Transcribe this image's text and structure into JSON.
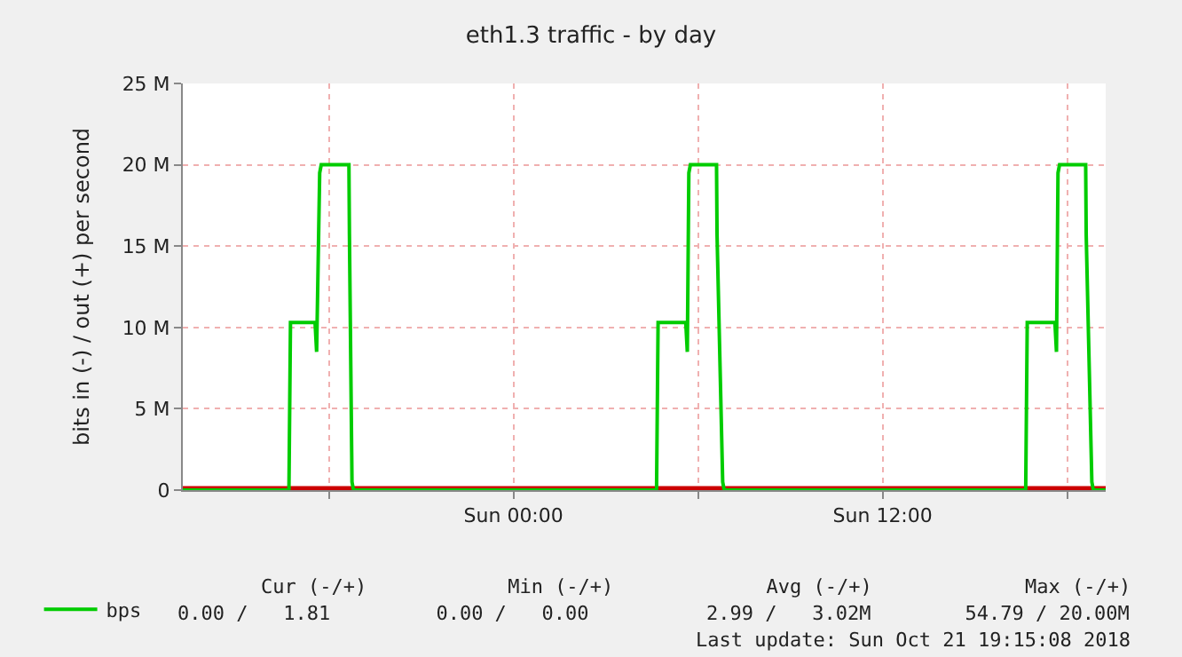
{
  "chart_data": {
    "type": "line",
    "title": "eth1.3 traffic - by day",
    "ylabel": "bits in (-) / out (+) per second",
    "xlim": [
      "2018-10-20T13:15",
      "2018-10-21T19:15"
    ],
    "xticks": [
      {
        "value": "2018-10-20T18:00",
        "label": null
      },
      {
        "value": "2018-10-21T00:00",
        "label": "Sun 00:00"
      },
      {
        "value": "2018-10-21T06:00",
        "label": null
      },
      {
        "value": "2018-10-21T12:00",
        "label": "Sun 12:00"
      },
      {
        "value": "2018-10-21T18:00",
        "label": null
      }
    ],
    "ylim": [
      0,
      25000000
    ],
    "yticks": [
      {
        "value": 0,
        "label": "0"
      },
      {
        "value": 5000000,
        "label": "5 M"
      },
      {
        "value": 10000000,
        "label": "10 M"
      },
      {
        "value": 15000000,
        "label": "15 M"
      },
      {
        "value": 20000000,
        "label": "20 M"
      },
      {
        "value": 25000000,
        "label": "25 M"
      }
    ],
    "series": [
      {
        "color": "#cc0000",
        "x": [
          "2018-10-20T13:15",
          "2018-10-21T19:15"
        ],
        "values": [
          0,
          0
        ]
      },
      {
        "name": "bps",
        "color": "#00cc00",
        "x": [
          "2018-10-20T13:15",
          "2018-10-20T16:42",
          "2018-10-20T16:45",
          "2018-10-20T17:33",
          "2018-10-20T17:36",
          "2018-10-20T17:42",
          "2018-10-20T17:45",
          "2018-10-20T18:39",
          "2018-10-20T18:40",
          "2018-10-20T18:45",
          "2018-10-20T18:48",
          "2018-10-21T04:39",
          "2018-10-21T04:42",
          "2018-10-21T05:36",
          "2018-10-21T05:39",
          "2018-10-21T05:42",
          "2018-10-21T05:45",
          "2018-10-21T06:36",
          "2018-10-21T06:37",
          "2018-10-21T06:48",
          "2018-10-21T06:51",
          "2018-10-21T16:39",
          "2018-10-21T16:42",
          "2018-10-21T17:36",
          "2018-10-21T17:39",
          "2018-10-21T17:42",
          "2018-10-21T17:45",
          "2018-10-21T18:36",
          "2018-10-21T18:37",
          "2018-10-21T18:48",
          "2018-10-21T18:51",
          "2018-10-21T19:15"
        ],
        "values": [
          0,
          0,
          10300000,
          10300000,
          8500000,
          19500000,
          20000000,
          20000000,
          15700000,
          500000,
          0,
          0,
          10300000,
          10300000,
          8500000,
          19500000,
          20000000,
          20000000,
          15700000,
          500000,
          0,
          0,
          10300000,
          10300000,
          8500000,
          19500000,
          20000000,
          20000000,
          15700000,
          500000,
          0,
          0
        ]
      }
    ],
    "annotations": [
      "Cur (-/+)            Min (-/+)             Avg (-/+)             Max (-/+)",
      "0.00 /   1.81         0.00 /   0.00          2.99 /   3.02M        54.79 / 20.00M",
      "Last update: Sun Oct 21 19:15:08 2018"
    ],
    "grid": true,
    "legend": "bottom left",
    "marker": "none",
    "line_style": "solid"
  }
}
